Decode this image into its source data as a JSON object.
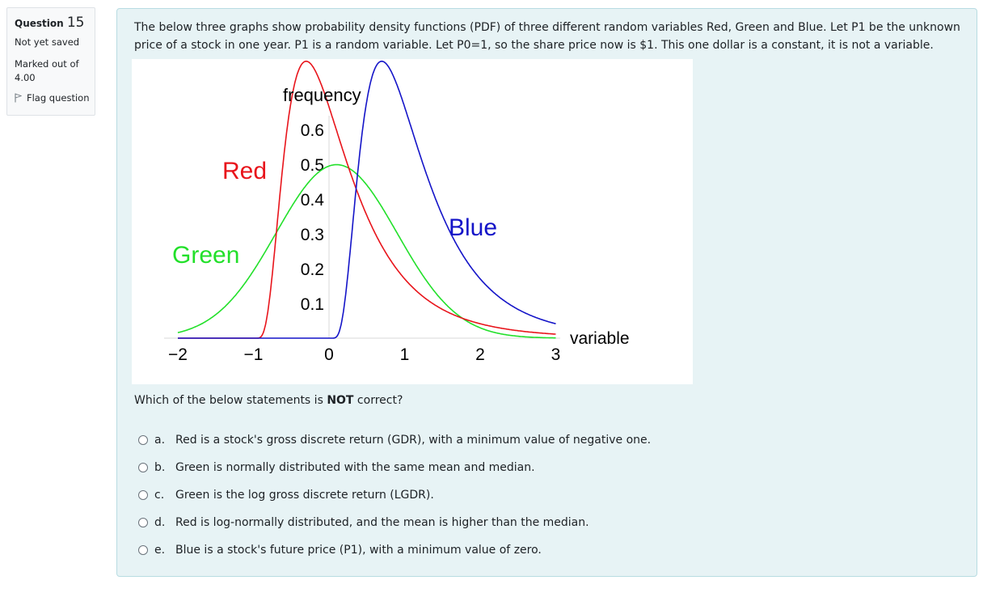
{
  "info": {
    "question_word": "Question",
    "question_number": "15",
    "state": "Not yet saved",
    "grade": "Marked out of 4.00",
    "flag_label": "Flag question",
    "flag_icon": "flag-icon"
  },
  "question": {
    "text": "The below three graphs show probability density functions (PDF) of three different random variables Red, Green and Blue. Let P1 be the unknown price of a stock in one year. P1 is a random variable. Let P0=1, so the share price now is $1.  This one dollar is a constant, it is not a variable.",
    "prompt_before": "Which of the below statements is ",
    "prompt_bold": "NOT",
    "prompt_after": " correct?"
  },
  "answers": [
    {
      "letter": "a.",
      "text": "Red is a stock's gross discrete return (GDR), with a minimum value of negative one."
    },
    {
      "letter": "b.",
      "text": "Green is normally distributed with the same mean and median."
    },
    {
      "letter": "c.",
      "text": "Green is the log gross discrete return (LGDR)."
    },
    {
      "letter": "d.",
      "text": "Red is log-normally distributed, and the mean is higher than the median."
    },
    {
      "letter": "e.",
      "text": "Blue is a stock's future price (P1), with a minimum value of zero."
    }
  ],
  "colors": {
    "red": "#e8141b",
    "green": "#22e02a",
    "blue": "#1414c8",
    "panel_bg": "#e7f3f5",
    "panel_border": "#b8dce2"
  },
  "chart_data": {
    "type": "line",
    "title": "",
    "xlabel": "variable",
    "ylabel": "frequency",
    "xlim": [
      -2,
      3
    ],
    "ylim": [
      0,
      0.65
    ],
    "x_ticks": [
      "-2",
      "-1",
      "0",
      "1",
      "2",
      "3"
    ],
    "y_ticks": [
      "0.1",
      "0.2",
      "0.3",
      "0.4",
      "0.5",
      "0.6"
    ],
    "grid": false,
    "legend": "inline labels",
    "series": [
      {
        "name": "Red",
        "color": "#e8141b",
        "description": "shifted lognormal, zero below -1, peak ~0.62 at x≈-0.45",
        "x": [
          -2,
          -1,
          -0.9,
          -0.8,
          -0.7,
          -0.6,
          -0.45,
          -0.3,
          -0.1,
          0,
          0.25,
          0.5,
          1,
          1.45,
          2,
          2.5,
          3
        ],
        "y": [
          0,
          0,
          0.22,
          0.4,
          0.54,
          0.6,
          0.62,
          0.59,
          0.53,
          0.5,
          0.4,
          0.31,
          0.2,
          0.13,
          0.08,
          0.05,
          0.035
        ]
      },
      {
        "name": "Green",
        "color": "#22e02a",
        "description": "normal, mean≈0.1, peak 0.5",
        "x": [
          -2,
          -1.5,
          -1,
          -0.8,
          -0.5,
          0,
          0.1,
          0.3,
          0.5,
          1,
          1.45,
          2,
          2.5,
          3
        ],
        "y": [
          0.015,
          0.06,
          0.19,
          0.26,
          0.38,
          0.49,
          0.5,
          0.49,
          0.45,
          0.27,
          0.13,
          0.03,
          0.005,
          0.0
        ]
      },
      {
        "name": "Blue",
        "color": "#1414c8",
        "description": "lognormal, zero below 0, peak ~0.62 at x≈0.6",
        "x": [
          -2,
          0,
          0.05,
          0.15,
          0.3,
          0.45,
          0.6,
          0.8,
          1,
          1.5,
          2,
          2.5,
          3
        ],
        "y": [
          0,
          0,
          0.01,
          0.18,
          0.45,
          0.59,
          0.62,
          0.58,
          0.48,
          0.31,
          0.18,
          0.11,
          0.075
        ]
      }
    ],
    "annotations": [
      "Red",
      "Green",
      "Blue"
    ]
  }
}
